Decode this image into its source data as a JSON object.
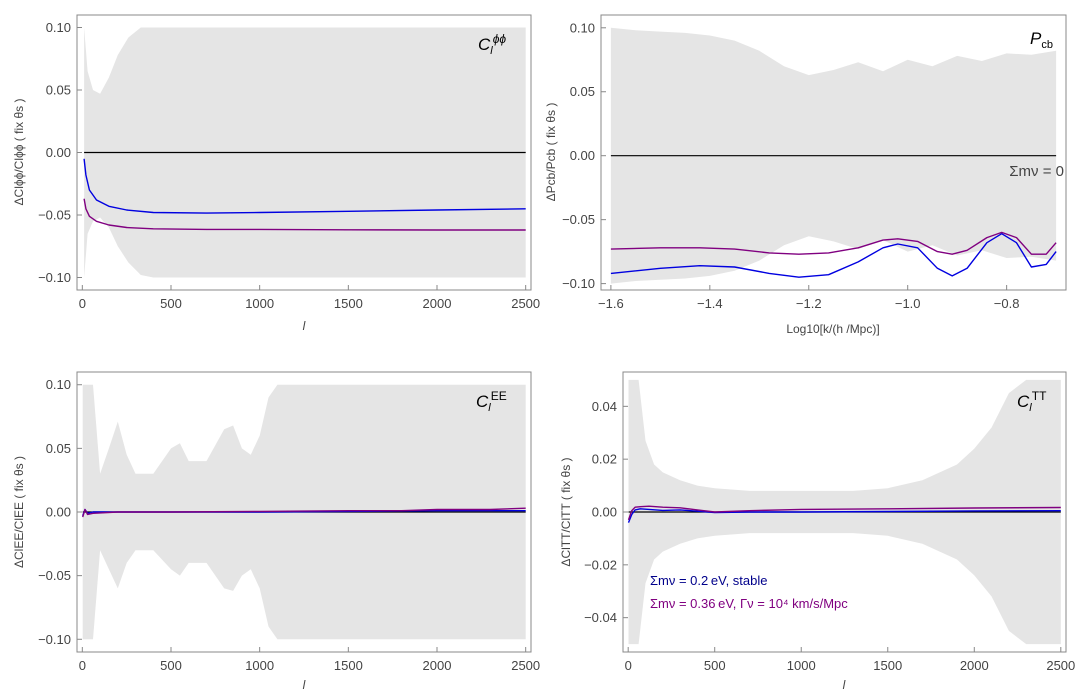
{
  "colors": {
    "band": "#e5e5e5",
    "reference": "#000000",
    "stable": "#0000e0",
    "decaying": "#800080",
    "axis": "#888888"
  },
  "legend": {
    "stable": "Σmν = 0.2 eV,  stable",
    "decaying": "Σmν = 0.36 eV,  Γν = 10⁴ km/s/Mpc"
  },
  "chart_data": [
    {
      "type": "line",
      "id": "phiphi",
      "panel_label": "Clϕϕ",
      "panel_label_main": "C",
      "panel_label_sub": "l",
      "panel_label_sup": "ϕϕ",
      "ylabel": "ΔClϕϕ/Clϕϕ ( fix θs )",
      "xlabel": "l",
      "xlim": [
        -30,
        2530
      ],
      "ylim": [
        -0.11,
        0.11
      ],
      "xticks": [
        0,
        500,
        1000,
        1500,
        2000,
        2500
      ],
      "yticks": [
        -0.1,
        -0.05,
        0.0,
        0.05,
        0.1
      ],
      "ytick_labels": [
        "−0.10",
        "−0.05",
        "0.00",
        "0.05",
        "0.10"
      ],
      "band": {
        "x": [
          10,
          30,
          60,
          100,
          150,
          200,
          260,
          330,
          400,
          600,
          1000,
          1500,
          2000,
          2500
        ],
        "upper": [
          0.1,
          0.065,
          0.05,
          0.047,
          0.06,
          0.078,
          0.092,
          0.1,
          0.1,
          0.1,
          0.1,
          0.1,
          0.1,
          0.1
        ],
        "lower": [
          -0.1,
          -0.065,
          -0.055,
          -0.052,
          -0.06,
          -0.075,
          -0.088,
          -0.098,
          -0.1,
          -0.1,
          -0.1,
          -0.1,
          -0.1,
          -0.1
        ]
      },
      "series": [
        {
          "key": "reference",
          "x": [
            10,
            2500
          ],
          "y": [
            0,
            0
          ]
        },
        {
          "key": "stable",
          "x": [
            10,
            20,
            40,
            80,
            150,
            250,
            400,
            700,
            1000,
            1500,
            2000,
            2500
          ],
          "y": [
            -0.005,
            -0.018,
            -0.03,
            -0.038,
            -0.043,
            -0.046,
            -0.048,
            -0.0485,
            -0.048,
            -0.047,
            -0.046,
            -0.045
          ]
        },
        {
          "key": "decaying",
          "x": [
            10,
            20,
            40,
            80,
            150,
            250,
            400,
            700,
            1000,
            1500,
            2000,
            2500
          ],
          "y": [
            -0.037,
            -0.045,
            -0.051,
            -0.055,
            -0.058,
            -0.06,
            -0.061,
            -0.0615,
            -0.0615,
            -0.0618,
            -0.062,
            -0.062
          ]
        }
      ]
    },
    {
      "type": "line",
      "id": "pcb",
      "panel_label": "Pcb",
      "panel_label_main": "P",
      "panel_label_sub": "cb",
      "panel_label_sup": "",
      "annotation": "Σmν = 0",
      "ylabel": "ΔPcb/Pcb ( fix θs )",
      "xlabel": "Log10[k/(h /Mpc)]",
      "xlim": [
        -1.62,
        -0.68
      ],
      "ylim": [
        -0.105,
        0.11
      ],
      "xticks": [
        -1.6,
        -1.4,
        -1.2,
        -1.0,
        -0.8
      ],
      "xtick_labels": [
        "−1.6",
        "−1.4",
        "−1.2",
        "−1.0",
        "−0.8"
      ],
      "yticks": [
        -0.1,
        -0.05,
        0.0,
        0.05,
        0.1
      ],
      "ytick_labels": [
        "−0.10",
        "−0.05",
        "0.00",
        "0.05",
        "0.10"
      ],
      "band": {
        "x": [
          -1.6,
          -1.55,
          -1.5,
          -1.45,
          -1.4,
          -1.35,
          -1.3,
          -1.25,
          -1.2,
          -1.15,
          -1.1,
          -1.05,
          -1.0,
          -0.95,
          -0.9,
          -0.85,
          -0.8,
          -0.75,
          -0.7
        ],
        "upper": [
          0.1,
          0.098,
          0.097,
          0.096,
          0.094,
          0.09,
          0.082,
          0.07,
          0.063,
          0.067,
          0.073,
          0.066,
          0.075,
          0.07,
          0.078,
          0.074,
          0.08,
          0.079,
          0.082
        ],
        "lower": [
          -0.1,
          -0.098,
          -0.097,
          -0.096,
          -0.094,
          -0.09,
          -0.082,
          -0.07,
          -0.063,
          -0.067,
          -0.073,
          -0.066,
          -0.075,
          -0.07,
          -0.078,
          -0.074,
          -0.08,
          -0.079,
          -0.082
        ]
      },
      "series": [
        {
          "key": "reference",
          "x": [
            -1.6,
            -0.7
          ],
          "y": [
            0,
            0
          ]
        },
        {
          "key": "stable",
          "x": [
            -1.6,
            -1.5,
            -1.42,
            -1.35,
            -1.28,
            -1.22,
            -1.16,
            -1.1,
            -1.05,
            -1.02,
            -0.98,
            -0.94,
            -0.91,
            -0.88,
            -0.84,
            -0.81,
            -0.78,
            -0.75,
            -0.72,
            -0.7
          ],
          "y": [
            -0.092,
            -0.088,
            -0.086,
            -0.087,
            -0.092,
            -0.095,
            -0.093,
            -0.083,
            -0.072,
            -0.069,
            -0.072,
            -0.088,
            -0.094,
            -0.088,
            -0.068,
            -0.061,
            -0.068,
            -0.087,
            -0.085,
            -0.075
          ]
        },
        {
          "key": "decaying",
          "x": [
            -1.6,
            -1.5,
            -1.42,
            -1.35,
            -1.28,
            -1.22,
            -1.16,
            -1.1,
            -1.05,
            -1.02,
            -0.98,
            -0.94,
            -0.91,
            -0.88,
            -0.84,
            -0.81,
            -0.78,
            -0.75,
            -0.72,
            -0.7
          ],
          "y": [
            -0.073,
            -0.072,
            -0.072,
            -0.073,
            -0.076,
            -0.077,
            -0.076,
            -0.072,
            -0.066,
            -0.065,
            -0.067,
            -0.075,
            -0.077,
            -0.074,
            -0.064,
            -0.06,
            -0.064,
            -0.077,
            -0.077,
            -0.068
          ]
        }
      ]
    },
    {
      "type": "line",
      "id": "ee",
      "panel_label": "ClEE",
      "panel_label_main": "C",
      "panel_label_sub": "l",
      "panel_label_sup": "EE",
      "ylabel": "ΔClEE/ClEE ( fix θs )",
      "xlabel": "l",
      "xlim": [
        -30,
        2530
      ],
      "ylim": [
        -0.11,
        0.11
      ],
      "xticks": [
        0,
        500,
        1000,
        1500,
        2000,
        2500
      ],
      "yticks": [
        -0.1,
        -0.05,
        0.0,
        0.05,
        0.1
      ],
      "ytick_labels": [
        "−0.10",
        "−0.05",
        "0.00",
        "0.05",
        "0.10"
      ],
      "band": {
        "x": [
          2,
          60,
          100,
          150,
          200,
          250,
          300,
          400,
          500,
          550,
          600,
          700,
          800,
          850,
          900,
          950,
          1000,
          1050,
          1100,
          1150,
          1200,
          1250,
          1300,
          1400,
          1500,
          1600,
          1700,
          1750,
          1800,
          1900,
          2000,
          2100,
          2200,
          2300,
          2400,
          2500
        ],
        "upper": [
          0.1,
          0.1,
          0.03,
          0.05,
          0.071,
          0.045,
          0.03,
          0.03,
          0.05,
          0.054,
          0.04,
          0.04,
          0.065,
          0.068,
          0.05,
          0.045,
          0.06,
          0.09,
          0.1,
          0.1,
          0.1,
          0.1,
          0.1,
          0.1,
          0.1,
          0.1,
          0.1,
          0.1,
          0.1,
          0.1,
          0.1,
          0.1,
          0.1,
          0.1,
          0.1,
          0.1
        ],
        "lower": [
          -0.1,
          -0.1,
          -0.03,
          -0.045,
          -0.06,
          -0.04,
          -0.03,
          -0.03,
          -0.045,
          -0.05,
          -0.04,
          -0.04,
          -0.06,
          -0.062,
          -0.05,
          -0.045,
          -0.06,
          -0.09,
          -0.1,
          -0.1,
          -0.1,
          -0.1,
          -0.1,
          -0.1,
          -0.1,
          -0.1,
          -0.1,
          -0.1,
          -0.1,
          -0.1,
          -0.1,
          -0.1,
          -0.1,
          -0.1,
          -0.1,
          -0.1
        ]
      },
      "series": [
        {
          "key": "reference",
          "x": [
            2,
            2500
          ],
          "y": [
            0,
            0
          ]
        },
        {
          "key": "stable",
          "x": [
            2,
            15,
            30,
            60,
            200,
            500,
            1000,
            1500,
            2000,
            2500
          ],
          "y": [
            -0.003,
            0.002,
            -0.001,
            0.0,
            0.0,
            0.0,
            0.0,
            0.0005,
            0.001,
            0.001
          ]
        },
        {
          "key": "decaying",
          "x": [
            2,
            15,
            30,
            60,
            200,
            500,
            1000,
            1500,
            1800,
            2000,
            2300,
            2500
          ],
          "y": [
            -0.004,
            0.002,
            -0.002,
            -0.001,
            0.0,
            0.0,
            0.0005,
            0.001,
            0.001,
            0.002,
            0.002,
            0.003
          ]
        }
      ]
    },
    {
      "type": "line",
      "id": "tt",
      "panel_label": "ClTT",
      "panel_label_main": "C",
      "panel_label_sub": "l",
      "panel_label_sup": "TT",
      "ylabel": "ΔClTT/ClTT ( fix θs )",
      "xlabel": "l",
      "xlim": [
        -30,
        2530
      ],
      "ylim": [
        -0.053,
        0.053
      ],
      "xticks": [
        0,
        500,
        1000,
        1500,
        2000,
        2500
      ],
      "yticks": [
        -0.04,
        -0.02,
        0.0,
        0.02,
        0.04
      ],
      "ytick_labels": [
        "−0.04",
        "−0.02",
        "0.00",
        "0.02",
        "0.04"
      ],
      "band": {
        "x": [
          2,
          60,
          100,
          150,
          200,
          300,
          400,
          500,
          700,
          1000,
          1300,
          1500,
          1700,
          1900,
          2000,
          2100,
          2200,
          2300,
          2500
        ],
        "upper": [
          0.05,
          0.05,
          0.027,
          0.018,
          0.015,
          0.012,
          0.01,
          0.009,
          0.008,
          0.008,
          0.008,
          0.009,
          0.012,
          0.018,
          0.024,
          0.032,
          0.045,
          0.05,
          0.05
        ],
        "lower": [
          -0.05,
          -0.05,
          -0.027,
          -0.018,
          -0.015,
          -0.012,
          -0.01,
          -0.009,
          -0.008,
          -0.008,
          -0.008,
          -0.009,
          -0.012,
          -0.018,
          -0.024,
          -0.032,
          -0.045,
          -0.05,
          -0.05
        ]
      },
      "series": [
        {
          "key": "reference",
          "x": [
            2,
            2500
          ],
          "y": [
            0,
            0
          ]
        },
        {
          "key": "stable",
          "x": [
            2,
            20,
            40,
            70,
            120,
            200,
            300,
            400,
            500,
            700,
            1000,
            1500,
            2000,
            2500
          ],
          "y": [
            -0.004,
            -0.001,
            0.0008,
            0.0012,
            0.001,
            0.0006,
            0.0008,
            0.0003,
            -0.0002,
            0.0,
            0.0,
            0.0002,
            0.0004,
            0.0005
          ]
        },
        {
          "key": "decaying",
          "x": [
            2,
            20,
            40,
            70,
            120,
            200,
            300,
            400,
            500,
            700,
            1000,
            1500,
            2000,
            2500
          ],
          "y": [
            -0.003,
            0.0005,
            0.0018,
            0.002,
            0.0022,
            0.0018,
            0.0016,
            0.0008,
            0.0,
            0.0005,
            0.001,
            0.0012,
            0.0015,
            0.0017
          ]
        }
      ]
    }
  ]
}
